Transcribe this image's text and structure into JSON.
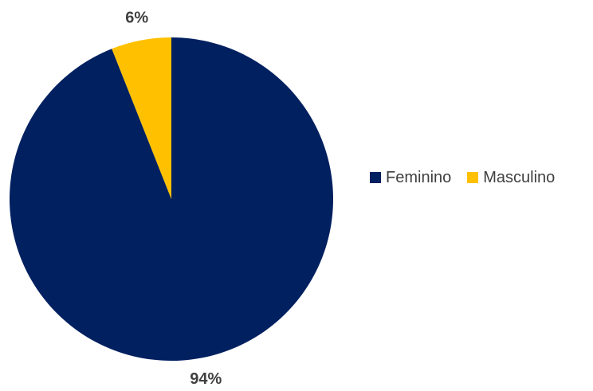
{
  "chart_data": {
    "type": "pie",
    "categories": [
      "Feminino",
      "Masculino"
    ],
    "values": [
      94,
      6
    ],
    "data_labels": [
      "94%",
      "6%"
    ],
    "colors": [
      "#002060",
      "#FFC000"
    ],
    "start_angle_deg": 0,
    "direction": "clockwise",
    "legend_position": "right",
    "title": ""
  }
}
